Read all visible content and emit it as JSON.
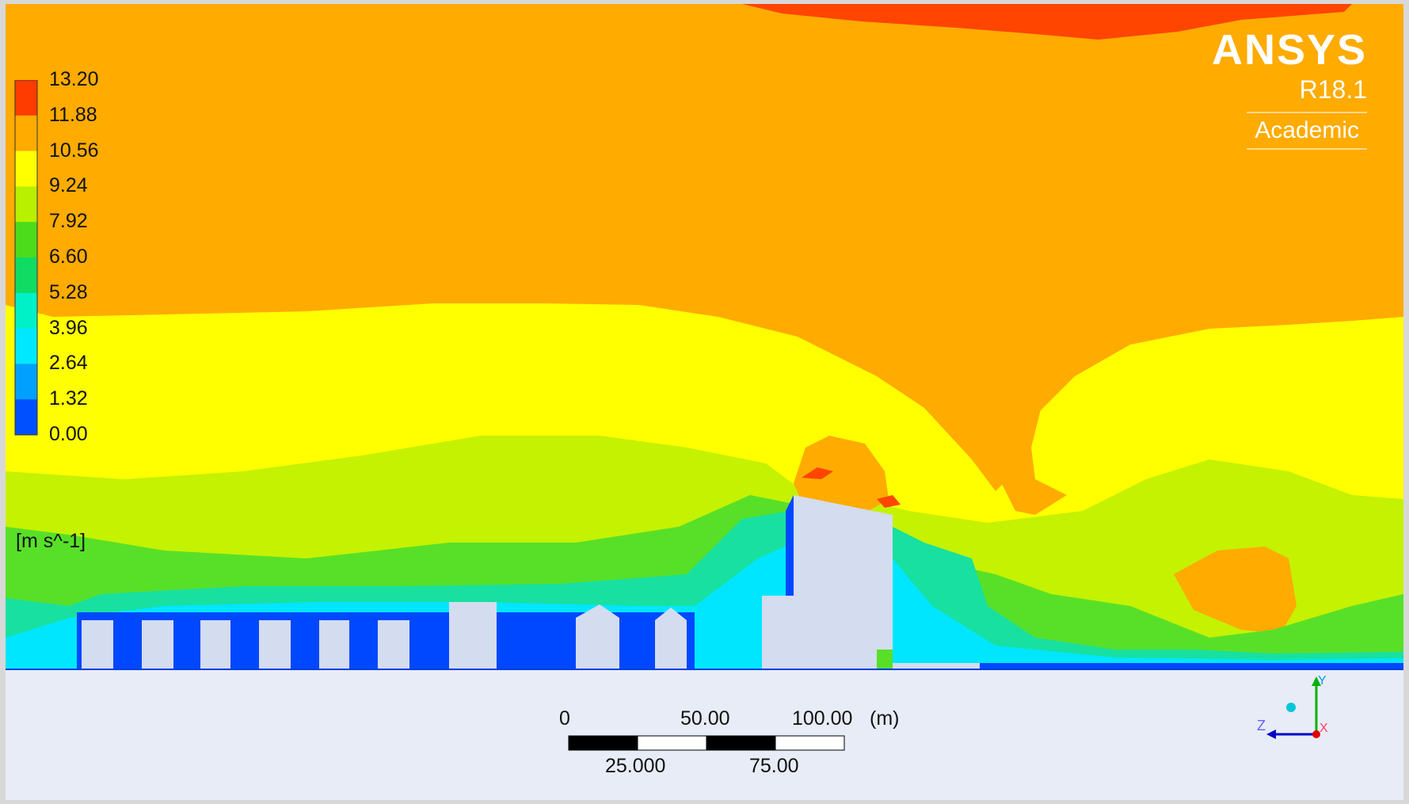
{
  "legend": {
    "ticks": [
      "13.20",
      "11.88",
      "10.56",
      "9.24",
      "7.92",
      "6.60",
      "5.28",
      "3.96",
      "2.64",
      "1.32",
      "0.00"
    ],
    "unit": "[m s^-1]",
    "colors": [
      "#ff3c00",
      "#ffab00",
      "#ffff00",
      "#b8f000",
      "#4cdc1c",
      "#10dc64",
      "#00f0c8",
      "#00e8ff",
      "#00a0ff",
      "#0050ff"
    ]
  },
  "brand": {
    "name": "ANSYS",
    "version": "R18.1",
    "edition": "Academic"
  },
  "scale_bar": {
    "top_labels": [
      "0",
      "50.00",
      "100.00"
    ],
    "unit": "(m)",
    "bottom_labels": [
      "25.000",
      "75.00"
    ]
  },
  "axes": {
    "x": "X",
    "y": "Y",
    "z": "Z"
  },
  "field_colors": {
    "red": "#ff4500",
    "orange": "#ffab00",
    "yellow": "#ffff00",
    "lime": "#c4f200",
    "green": "#58e028",
    "teal": "#18e0a0",
    "cyan": "#00e6ff",
    "blue": "#0048ff",
    "solid": "#d4dcf0",
    "ground": "#e8ecf6"
  }
}
